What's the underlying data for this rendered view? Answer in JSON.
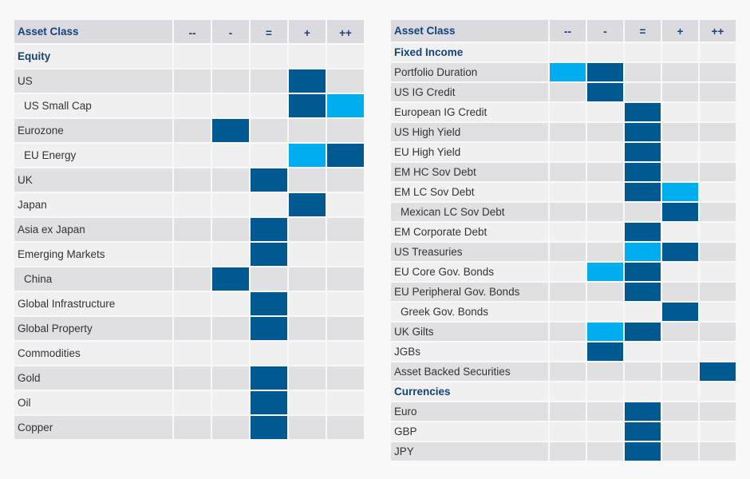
{
  "page": {
    "background": "#f8f8f8"
  },
  "colors": {
    "dark_blue": "#005a91",
    "light_blue": "#00aeef",
    "navy": "#14427a",
    "row_dark": "#e0e0e3",
    "row_light": "#f0f0f1",
    "header_bg": "#dbdbdf",
    "label_text": "#333333"
  },
  "rating_scale": [
    "--",
    "-",
    "=",
    "+",
    "++"
  ],
  "tables": [
    {
      "id": "equity-table",
      "header_label": "Asset Class",
      "columns": [
        "--",
        "-",
        "=",
        "+",
        "++"
      ],
      "rows": [
        {
          "label": "Equity",
          "section": true,
          "shade": "light",
          "marks": {}
        },
        {
          "label": "US",
          "shade": "dark",
          "marks": {
            "+": "dark"
          }
        },
        {
          "label": "US Small Cap",
          "indent": true,
          "shade": "light",
          "marks": {
            "+": "dark",
            "++": "light"
          }
        },
        {
          "label": "Eurozone",
          "shade": "dark",
          "marks": {
            "-": "dark"
          }
        },
        {
          "label": "EU Energy",
          "indent": true,
          "shade": "light",
          "marks": {
            "+": "light",
            "++": "dark"
          }
        },
        {
          "label": "UK",
          "shade": "dark",
          "marks": {
            "=": "dark"
          }
        },
        {
          "label": "Japan",
          "shade": "light",
          "marks": {
            "+": "dark"
          }
        },
        {
          "label": "Asia ex Japan",
          "shade": "dark",
          "marks": {
            "=": "dark"
          }
        },
        {
          "label": "Emerging Markets",
          "shade": "light",
          "marks": {
            "=": "dark"
          }
        },
        {
          "label": "China",
          "indent": true,
          "shade": "dark",
          "marks": {
            "-": "dark"
          }
        },
        {
          "label": "Global Infrastructure",
          "shade": "light",
          "marks": {
            "=": "dark"
          }
        },
        {
          "label": "Global Property",
          "shade": "dark",
          "marks": {
            "=": "dark"
          }
        },
        {
          "label": "Commodities",
          "shade": "light",
          "marks": {}
        },
        {
          "label": "Gold",
          "shade": "dark",
          "marks": {
            "=": "dark"
          }
        },
        {
          "label": "Oil",
          "shade": "light",
          "marks": {
            "=": "dark"
          }
        },
        {
          "label": "Copper",
          "shade": "dark",
          "marks": {
            "=": "dark"
          }
        }
      ]
    },
    {
      "id": "fixed-income-table",
      "header_label": "Asset Class",
      "columns": [
        "--",
        "-",
        "=",
        "+",
        "++"
      ],
      "rows": [
        {
          "label": "Fixed Income",
          "section": true,
          "shade": "light",
          "marks": {}
        },
        {
          "label": "Portfolio Duration",
          "shade": "dark",
          "marks": {
            "--": "light",
            "-": "dark"
          }
        },
        {
          "label": "US IG Credit",
          "shade": "dark",
          "marks": {
            "-": "dark"
          }
        },
        {
          "label": "European IG Credit",
          "shade": "light",
          "marks": {
            "=": "dark"
          }
        },
        {
          "label": "US High Yield",
          "shade": "dark",
          "marks": {
            "=": "dark"
          }
        },
        {
          "label": "EU High Yield",
          "shade": "light",
          "marks": {
            "=": "dark"
          }
        },
        {
          "label": "EM HC Sov Debt",
          "shade": "dark",
          "marks": {
            "=": "dark"
          }
        },
        {
          "label": "EM LC Sov Debt",
          "shade": "light",
          "marks": {
            "=": "dark",
            "+": "light"
          }
        },
        {
          "label": "Mexican LC Sov Debt",
          "indent": true,
          "shade": "dark",
          "marks": {
            "+": "dark"
          }
        },
        {
          "label": "EM Corporate Debt",
          "shade": "light",
          "marks": {
            "=": "dark"
          }
        },
        {
          "label": "US Treasuries",
          "shade": "dark",
          "marks": {
            "=": "light",
            "+": "dark"
          }
        },
        {
          "label": "EU Core Gov. Bonds",
          "shade": "light",
          "marks": {
            "-": "light",
            "=": "dark"
          }
        },
        {
          "label": "EU Peripheral Gov. Bonds",
          "shade": "dark",
          "marks": {
            "=": "dark"
          }
        },
        {
          "label": "Greek Gov. Bonds",
          "indent": true,
          "shade": "light",
          "marks": {
            "+": "dark"
          }
        },
        {
          "label": "UK Gilts",
          "shade": "dark",
          "marks": {
            "-": "light",
            "=": "dark"
          }
        },
        {
          "label": "JGBs",
          "shade": "light",
          "marks": {
            "-": "dark"
          }
        },
        {
          "label": "Asset Backed Securities",
          "shade": "dark",
          "marks": {
            "++": "dark"
          }
        },
        {
          "label": "Currencies",
          "section": true,
          "shade": "light",
          "marks": {}
        },
        {
          "label": "Euro",
          "shade": "dark",
          "marks": {
            "=": "dark"
          }
        },
        {
          "label": "GBP",
          "shade": "light",
          "marks": {
            "=": "dark"
          }
        },
        {
          "label": "JPY",
          "shade": "dark",
          "marks": {
            "=": "dark"
          }
        }
      ]
    }
  ]
}
